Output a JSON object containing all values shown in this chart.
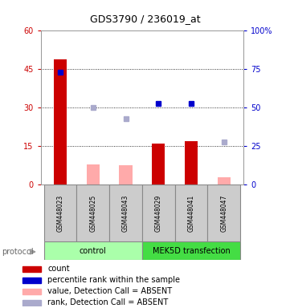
{
  "title": "GDS3790 / 236019_at",
  "samples": [
    "GSM448023",
    "GSM448025",
    "GSM448043",
    "GSM448029",
    "GSM448041",
    "GSM448047"
  ],
  "count_values": [
    49,
    null,
    null,
    16,
    17,
    null
  ],
  "count_absent_values": [
    null,
    8,
    7.5,
    null,
    null,
    3
  ],
  "blue_dot_right": [
    73,
    null,
    null,
    53,
    53,
    null
  ],
  "lightblue_dot_right": [
    null,
    50,
    43,
    null,
    null,
    28
  ],
  "ylim_left": [
    0,
    60
  ],
  "ylim_right": [
    0,
    100
  ],
  "yticks_left": [
    0,
    15,
    30,
    45,
    60
  ],
  "yticks_right": [
    0,
    25,
    50,
    75,
    100
  ],
  "ytick_labels_right": [
    "0",
    "25",
    "50",
    "75",
    "100%"
  ],
  "bar_color_red": "#cc0000",
  "bar_color_pink": "#ffaaaa",
  "dot_blue": "#0000cc",
  "dot_lightblue": "#aaaacc",
  "color_control": "#aaffaa",
  "color_mek": "#44dd44",
  "color_sample_bg": "#cccccc",
  "title_fontsize": 9,
  "tick_fontsize": 7,
  "legend_fontsize": 7,
  "group_fontsize": 7,
  "sample_fontsize": 5.5,
  "protocol_fontsize": 7,
  "left_tick_color": "#cc0000",
  "right_tick_color": "#0000cc",
  "group_label_control": "control",
  "group_label_mek": "MEK5D transfection",
  "protocol_label": "protocol"
}
